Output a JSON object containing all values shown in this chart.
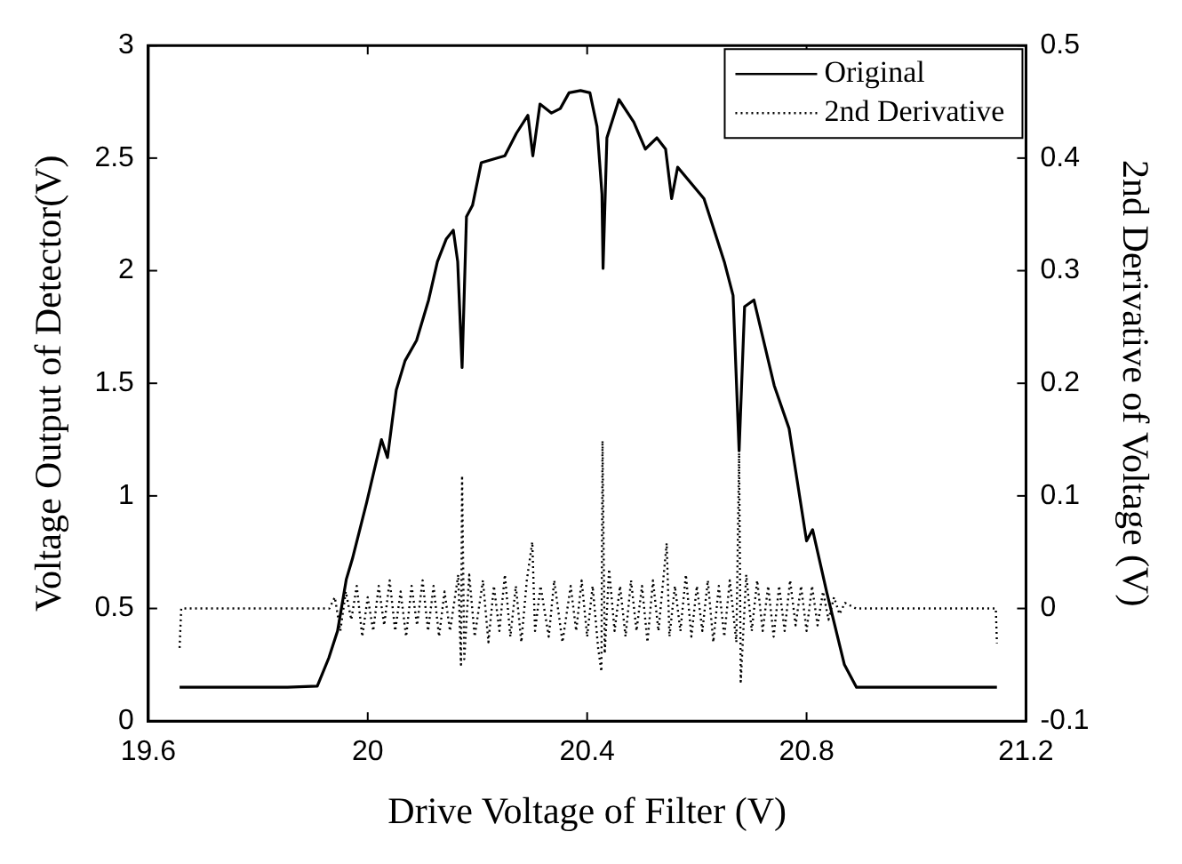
{
  "chart_data": {
    "type": "line",
    "xlabel": "Drive Voltage of Filter (V)",
    "ylabel": "Voltage Output of Detector(V)",
    "y2label": "2nd Derivative of Voltage (V)",
    "xlim": [
      19.6,
      21.2
    ],
    "xticks": [
      19.6,
      20,
      20.4,
      20.8,
      21.2
    ],
    "ylim": [
      0,
      3
    ],
    "yticks": [
      0,
      0.5,
      1,
      1.5,
      2,
      2.5,
      3
    ],
    "y2lim": [
      -0.1,
      0.5
    ],
    "y2ticks": [
      -0.1,
      0,
      0.1,
      0.2,
      0.3,
      0.4,
      0.5
    ],
    "grid": false,
    "legend": "top right",
    "marker": "none",
    "series": [
      {
        "name": "Original",
        "color": "#000000",
        "line_style": "solid",
        "x": [
          19.657,
          19.854,
          19.908,
          19.929,
          19.945,
          19.961,
          19.972,
          19.998,
          20.025,
          20.036,
          20.052,
          20.068,
          20.089,
          20.111,
          20.127,
          20.143,
          20.156,
          20.164,
          20.172,
          20.18,
          20.191,
          20.207,
          20.25,
          20.271,
          20.292,
          20.301,
          20.314,
          20.335,
          20.351,
          20.367,
          20.388,
          20.405,
          20.418,
          20.427,
          20.429,
          20.436,
          20.458,
          20.485,
          20.506,
          20.527,
          20.543,
          20.554,
          20.565,
          20.613,
          20.65,
          20.666,
          20.677,
          20.687,
          20.704,
          20.741,
          20.768,
          20.8,
          20.811,
          20.837,
          20.869,
          20.891,
          21.147
        ],
        "values": [
          0.15,
          0.15,
          0.155,
          0.28,
          0.4,
          0.63,
          0.72,
          0.97,
          1.25,
          1.17,
          1.47,
          1.6,
          1.69,
          1.87,
          2.04,
          2.14,
          2.18,
          2.04,
          1.57,
          2.24,
          2.29,
          2.48,
          2.51,
          2.61,
          2.69,
          2.51,
          2.74,
          2.7,
          2.72,
          2.79,
          2.8,
          2.79,
          2.64,
          2.34,
          2.01,
          2.59,
          2.76,
          2.66,
          2.54,
          2.59,
          2.54,
          2.32,
          2.46,
          2.32,
          2.04,
          1.89,
          1.2,
          1.84,
          1.87,
          1.49,
          1.3,
          0.8,
          0.85,
          0.57,
          0.25,
          0.15,
          0.15
        ]
      },
      {
        "name": "2nd Derivative",
        "color": "#000000",
        "line_style": "dotted",
        "axis": "y2",
        "x": [
          19.657,
          19.66,
          19.93,
          19.94,
          19.95,
          19.96,
          19.97,
          19.98,
          19.99,
          20.0,
          20.01,
          20.02,
          20.03,
          20.04,
          20.05,
          20.06,
          20.07,
          20.08,
          20.09,
          20.1,
          20.11,
          20.12,
          20.13,
          20.14,
          20.15,
          20.165,
          20.17,
          20.172,
          20.176,
          20.185,
          20.195,
          20.21,
          20.22,
          20.23,
          20.24,
          20.25,
          20.26,
          20.27,
          20.28,
          20.29,
          20.3,
          20.305,
          20.315,
          20.33,
          20.34,
          20.355,
          20.37,
          20.38,
          20.39,
          20.4,
          20.41,
          20.42,
          20.426,
          20.428,
          20.432,
          20.44,
          20.45,
          20.46,
          20.47,
          20.48,
          20.49,
          20.5,
          20.51,
          20.52,
          20.53,
          20.545,
          20.55,
          20.56,
          20.57,
          20.58,
          20.59,
          20.6,
          20.61,
          20.62,
          20.63,
          20.64,
          20.65,
          20.66,
          20.672,
          20.677,
          20.68,
          20.69,
          20.7,
          20.71,
          20.72,
          20.73,
          20.74,
          20.75,
          20.76,
          20.77,
          20.78,
          20.79,
          20.8,
          20.81,
          20.82,
          20.83,
          20.84,
          20.85,
          20.86,
          20.87,
          20.89,
          21.145,
          21.147
        ],
        "values": [
          -0.035,
          0,
          0,
          0.01,
          -0.02,
          0.015,
          -0.01,
          0.02,
          -0.025,
          0.01,
          -0.02,
          0.02,
          -0.015,
          0.025,
          -0.02,
          0.015,
          -0.025,
          0.02,
          -0.015,
          0.025,
          -0.02,
          0.02,
          -0.025,
          0.015,
          -0.02,
          0.03,
          -0.05,
          0.118,
          -0.045,
          0.03,
          -0.025,
          0.025,
          -0.03,
          0.02,
          -0.02,
          0.03,
          -0.025,
          0.02,
          -0.03,
          0.025,
          0.059,
          -0.02,
          0.02,
          -0.025,
          0.025,
          -0.03,
          0.02,
          -0.02,
          0.025,
          -0.025,
          0.02,
          -0.035,
          -0.056,
          0.149,
          -0.04,
          0.035,
          -0.02,
          0.02,
          -0.025,
          0.025,
          -0.02,
          0.02,
          -0.03,
          0.025,
          -0.02,
          0.058,
          -0.025,
          0.02,
          -0.02,
          0.03,
          -0.025,
          0.02,
          -0.02,
          0.025,
          -0.03,
          0.02,
          -0.025,
          0.025,
          -0.03,
          0.138,
          -0.065,
          0.03,
          -0.02,
          0.025,
          -0.02,
          0.02,
          -0.025,
          0.02,
          -0.02,
          0.025,
          -0.015,
          0.02,
          -0.02,
          0.02,
          -0.015,
          0.015,
          -0.01,
          0.01,
          -0.005,
          0.005,
          0,
          0,
          -0.031
        ]
      }
    ]
  }
}
